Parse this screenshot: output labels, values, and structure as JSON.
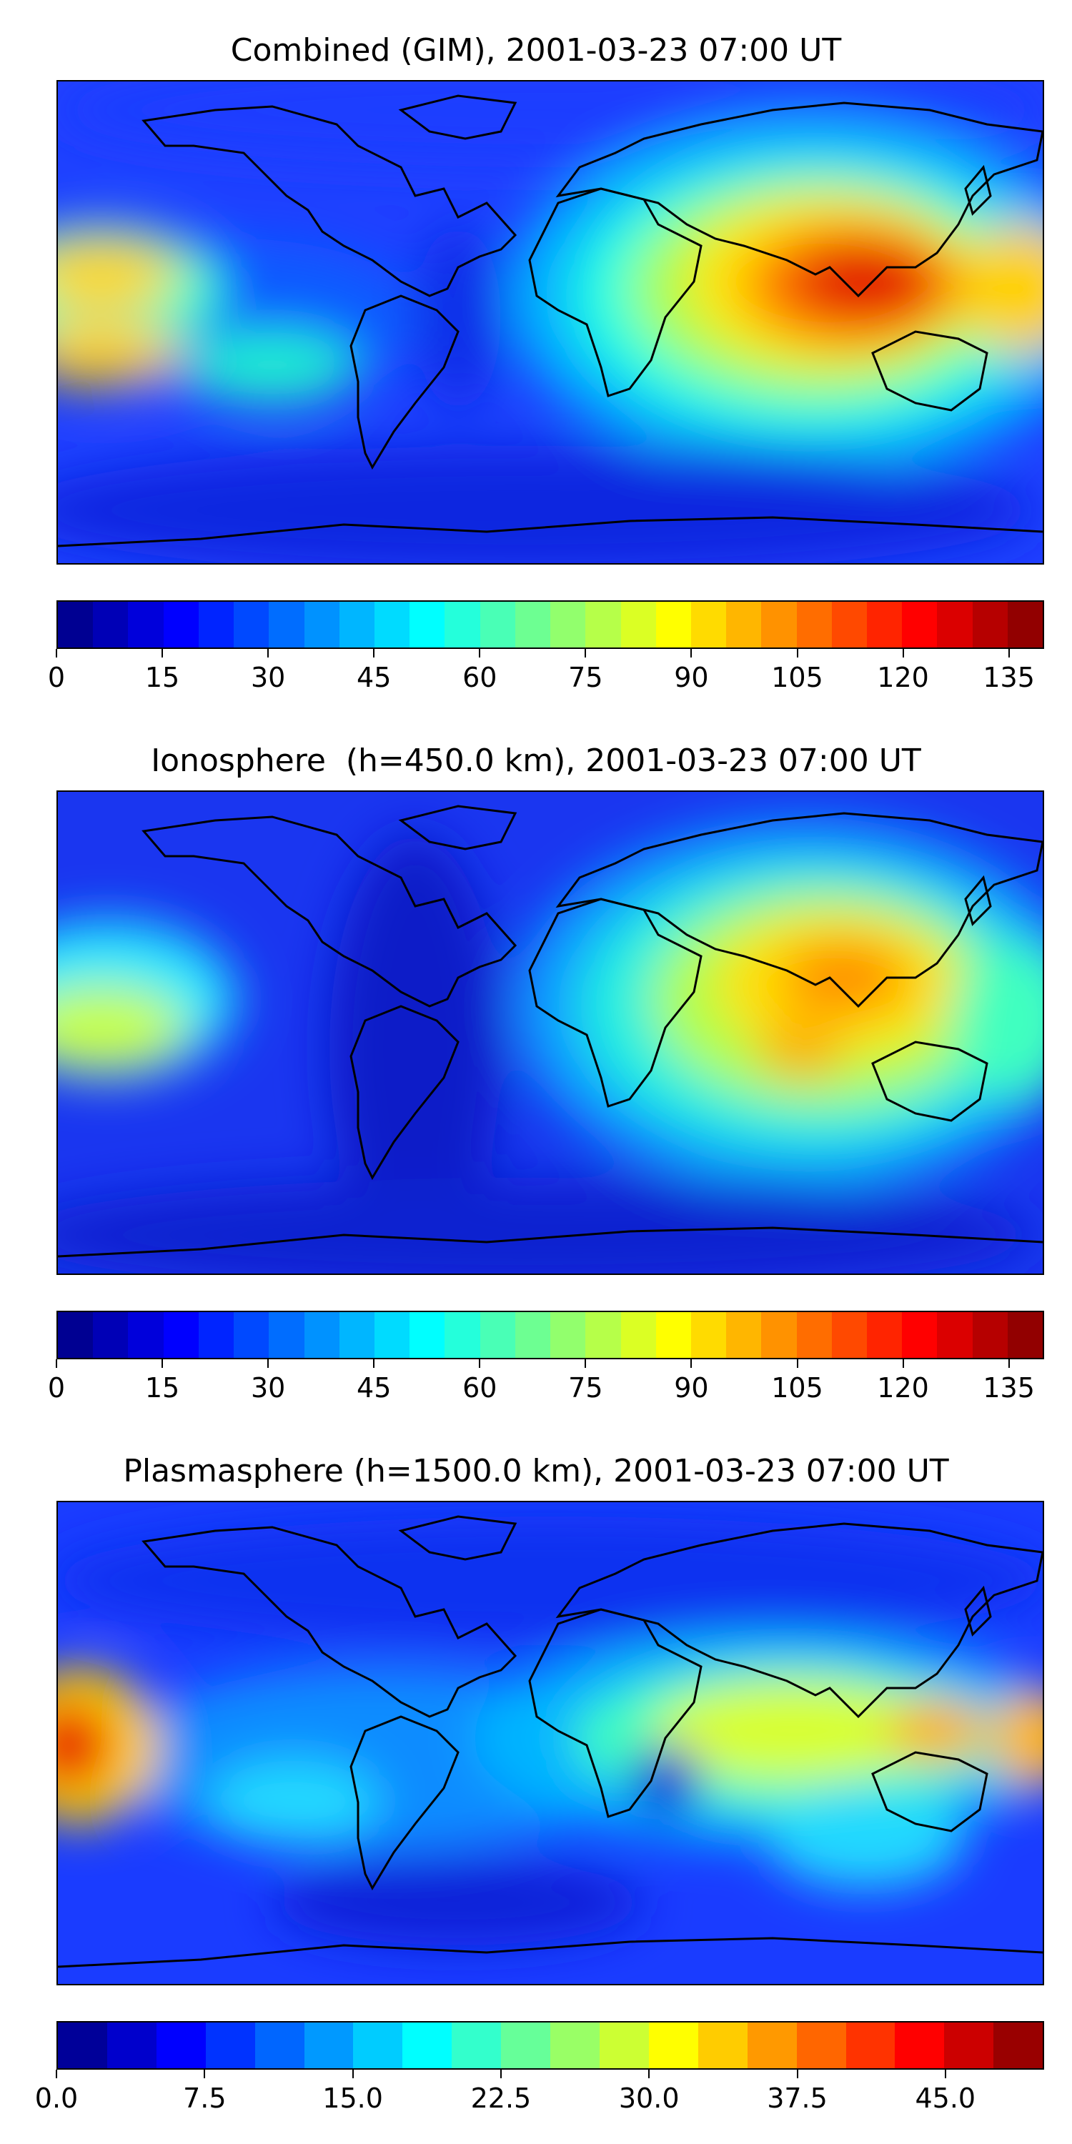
{
  "panels": [
    {
      "title": "Combined (GIM), 2001-03-23 07:00 UT",
      "variant": "combined",
      "colorbar": {
        "min": 0,
        "max": 140,
        "levels": 28,
        "ticks": [
          "0",
          "15",
          "30",
          "45",
          "60",
          "75",
          "90",
          "105",
          "120",
          "135"
        ],
        "tick_values": [
          0,
          15,
          30,
          45,
          60,
          75,
          90,
          105,
          120,
          135
        ]
      }
    },
    {
      "title": "Ionosphere  (h=450.0 km), 2001-03-23 07:00 UT",
      "variant": "ionosphere",
      "colorbar": {
        "min": 0,
        "max": 140,
        "levels": 28,
        "ticks": [
          "0",
          "15",
          "30",
          "45",
          "60",
          "75",
          "90",
          "105",
          "120",
          "135"
        ],
        "tick_values": [
          0,
          15,
          30,
          45,
          60,
          75,
          90,
          105,
          120,
          135
        ]
      }
    },
    {
      "title": "Plasmasphere (h=1500.0 km), 2001-03-23 07:00 UT",
      "variant": "plasmasphere",
      "colorbar": {
        "min": 0,
        "max": 50,
        "levels": 20,
        "ticks": [
          "0.0",
          "7.5",
          "15.0",
          "22.5",
          "30.0",
          "37.5",
          "45.0"
        ],
        "tick_values": [
          0,
          7.5,
          15,
          22.5,
          30,
          37.5,
          45
        ]
      }
    }
  ],
  "chart_data": [
    {
      "type": "heatmap",
      "title": "Combined (GIM), 2001-03-23 07:00 UT",
      "colorbar_range": [
        0,
        140
      ],
      "peak_region": "Southeast Asia",
      "peak_value_approx": 130
    },
    {
      "type": "heatmap",
      "title": "Ionosphere  (h=450.0 km), 2001-03-23 07:00 UT",
      "colorbar_range": [
        0,
        140
      ],
      "peak_region": "Southeast Asia",
      "peak_value_approx": 100
    },
    {
      "type": "heatmap",
      "title": "Plasmasphere (h=1500.0 km), 2001-03-23 07:00 UT",
      "colorbar_range": [
        0,
        50
      ],
      "peak_region": "Central Pacific (west edge)",
      "peak_value_approx": 45
    }
  ]
}
